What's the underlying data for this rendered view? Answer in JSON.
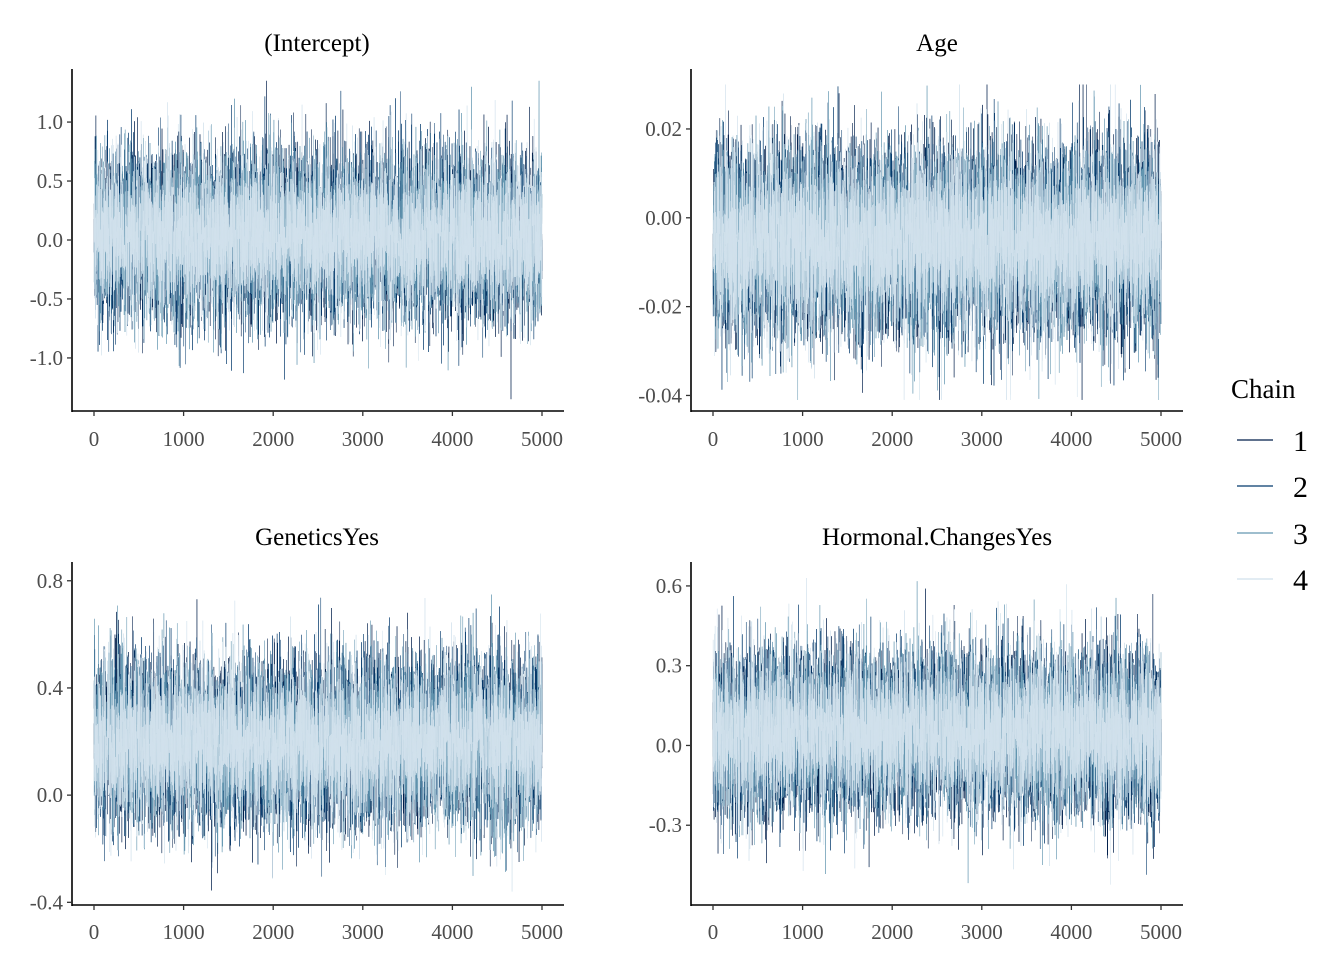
{
  "chart_data": [
    {
      "type": "line",
      "title": "(Intercept)",
      "xlabel": "",
      "ylabel": "",
      "xlim": [
        0,
        5000
      ],
      "ylim": [
        -1.45,
        1.45
      ],
      "x_ticks": [
        0,
        1000,
        2000,
        3000,
        4000,
        5000
      ],
      "y_ticks": [
        -1.0,
        -0.5,
        0.0,
        0.5,
        1.0
      ],
      "y_tick_labels": [
        "-1.0",
        "-0.5",
        "0.0",
        "0.5",
        "1.0"
      ],
      "iterations": 5000,
      "center": 0.04,
      "sd": 0.34,
      "min": -1.35,
      "max": 1.35,
      "series": [
        {
          "name": "1"
        },
        {
          "name": "2"
        },
        {
          "name": "3"
        },
        {
          "name": "4"
        }
      ]
    },
    {
      "type": "line",
      "title": "Age",
      "xlabel": "",
      "ylabel": "",
      "xlim": [
        0,
        5000
      ],
      "ylim": [
        -0.0435,
        0.0335
      ],
      "x_ticks": [
        0,
        1000,
        2000,
        3000,
        4000,
        5000
      ],
      "y_ticks": [
        -0.04,
        -0.02,
        0.0,
        0.02
      ],
      "y_tick_labels": [
        "-0.04",
        "-0.02",
        "0.00",
        "0.02"
      ],
      "iterations": 5000,
      "center": -0.005,
      "sd": 0.0105,
      "min": -0.041,
      "max": 0.03,
      "series": [
        {
          "name": "1"
        },
        {
          "name": "2"
        },
        {
          "name": "3"
        },
        {
          "name": "4"
        }
      ]
    },
    {
      "type": "line",
      "title": "GeneticsYes",
      "xlabel": "",
      "ylabel": "",
      "xlim": [
        0,
        5000
      ],
      "ylim": [
        -0.41,
        0.87
      ],
      "x_ticks": [
        0,
        1000,
        2000,
        3000,
        4000,
        5000
      ],
      "y_ticks": [
        -0.4,
        0.0,
        0.4,
        0.8
      ],
      "y_tick_labels": [
        "-0.4",
        "0.0",
        "0.4",
        "0.8"
      ],
      "iterations": 5000,
      "center": 0.2,
      "sd": 0.15,
      "min": -0.36,
      "max": 0.8,
      "series": [
        {
          "name": "1"
        },
        {
          "name": "2"
        },
        {
          "name": "3"
        },
        {
          "name": "4"
        }
      ]
    },
    {
      "type": "line",
      "title": "Hormonal.ChangesYes",
      "xlabel": "",
      "ylabel": "",
      "xlim": [
        0,
        5000
      ],
      "ylim": [
        -0.6,
        0.69
      ],
      "x_ticks": [
        0,
        1000,
        2000,
        3000,
        4000,
        5000
      ],
      "y_ticks": [
        -0.3,
        0.0,
        0.3,
        0.6
      ],
      "y_tick_labels": [
        "-0.3",
        "0.0",
        "0.3",
        "0.6"
      ],
      "iterations": 5000,
      "center": 0.05,
      "sd": 0.15,
      "min": -0.54,
      "max": 0.64,
      "series": [
        {
          "name": "1"
        },
        {
          "name": "2"
        },
        {
          "name": "3"
        },
        {
          "name": "4"
        }
      ]
    }
  ],
  "legend": {
    "title": "Chain",
    "position": "right",
    "items": [
      {
        "label": "1",
        "color": "#011f4b"
      },
      {
        "label": "2",
        "color": "#03396c"
      },
      {
        "label": "3",
        "color": "#6497b1"
      },
      {
        "label": "4",
        "color": "#d1e1ec"
      }
    ]
  },
  "grid": false
}
